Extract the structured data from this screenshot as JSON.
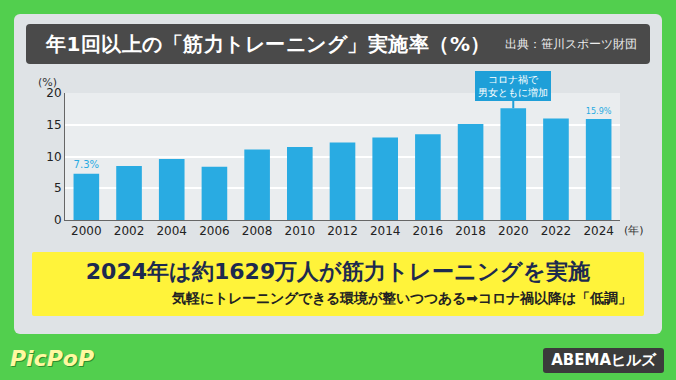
{
  "chart_data": {
    "type": "bar",
    "title": "年1回以上の「筋力トレーニング」実施率（%）",
    "source": "出典：笹川スポーツ財団",
    "categories": [
      "2000",
      "2002",
      "2004",
      "2006",
      "2008",
      "2010",
      "2012",
      "2014",
      "2016",
      "2018",
      "2020",
      "2022",
      "2024"
    ],
    "values": [
      7.3,
      8.5,
      9.6,
      8.4,
      11.1,
      11.5,
      12.2,
      13.0,
      13.5,
      15.1,
      17.6,
      16.0,
      15.9
    ],
    "value_labels": [
      "7.3%",
      null,
      null,
      null,
      null,
      null,
      null,
      null,
      null,
      null,
      null,
      null,
      "15.9%"
    ],
    "data_labels": true,
    "color": "#29abe2",
    "ylim": [
      0,
      20
    ],
    "yticks": [
      0,
      5,
      10,
      15,
      20
    ],
    "grid": true,
    "xlabel": "(年)",
    "ylabel": "(%)",
    "annotations": [
      {
        "category": "2020",
        "text": "コロナ禍で\n男女ともに増加"
      }
    ],
    "headline": "2024年は約1629万人が筋力トレーニングを実施",
    "note": "気軽にトレーニングできる環境が整いつつある➡コロナ禍以降は「低調」",
    "branding": [
      "PicPoP",
      "ABEMAヒルズ"
    ]
  }
}
